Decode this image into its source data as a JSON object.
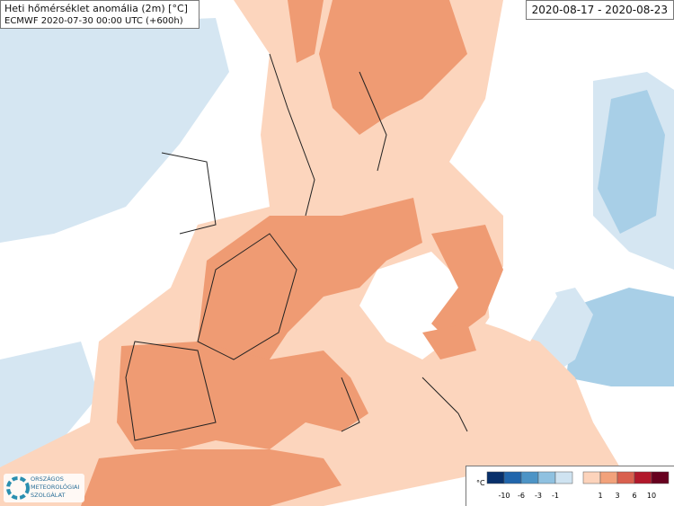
{
  "header": {
    "title": "Heti hőmérséklet anomália (2m) [°C]",
    "subtitle": "ECMWF 2020-07-30 00:00 UTC (+600h)",
    "period": "2020-08-17 - 2020-08-23"
  },
  "legend": {
    "unit": "°C",
    "negative": {
      "labels": [
        -10,
        -6,
        -3,
        -1
      ],
      "colors": [
        "#08306b",
        "#2166ac",
        "#4d94c6",
        "#8fc1e0",
        "#cfe3f1"
      ]
    },
    "positive": {
      "labels": [
        1,
        3,
        6,
        10
      ],
      "colors": [
        "#fcd3bb",
        "#f2a27b",
        "#d9604e",
        "#b2182b",
        "#67001f"
      ]
    }
  },
  "logo": {
    "lines": [
      "ORSZÁGOS",
      "METEOROLÓGIAI",
      "SZOLGÁLAT"
    ]
  }
}
